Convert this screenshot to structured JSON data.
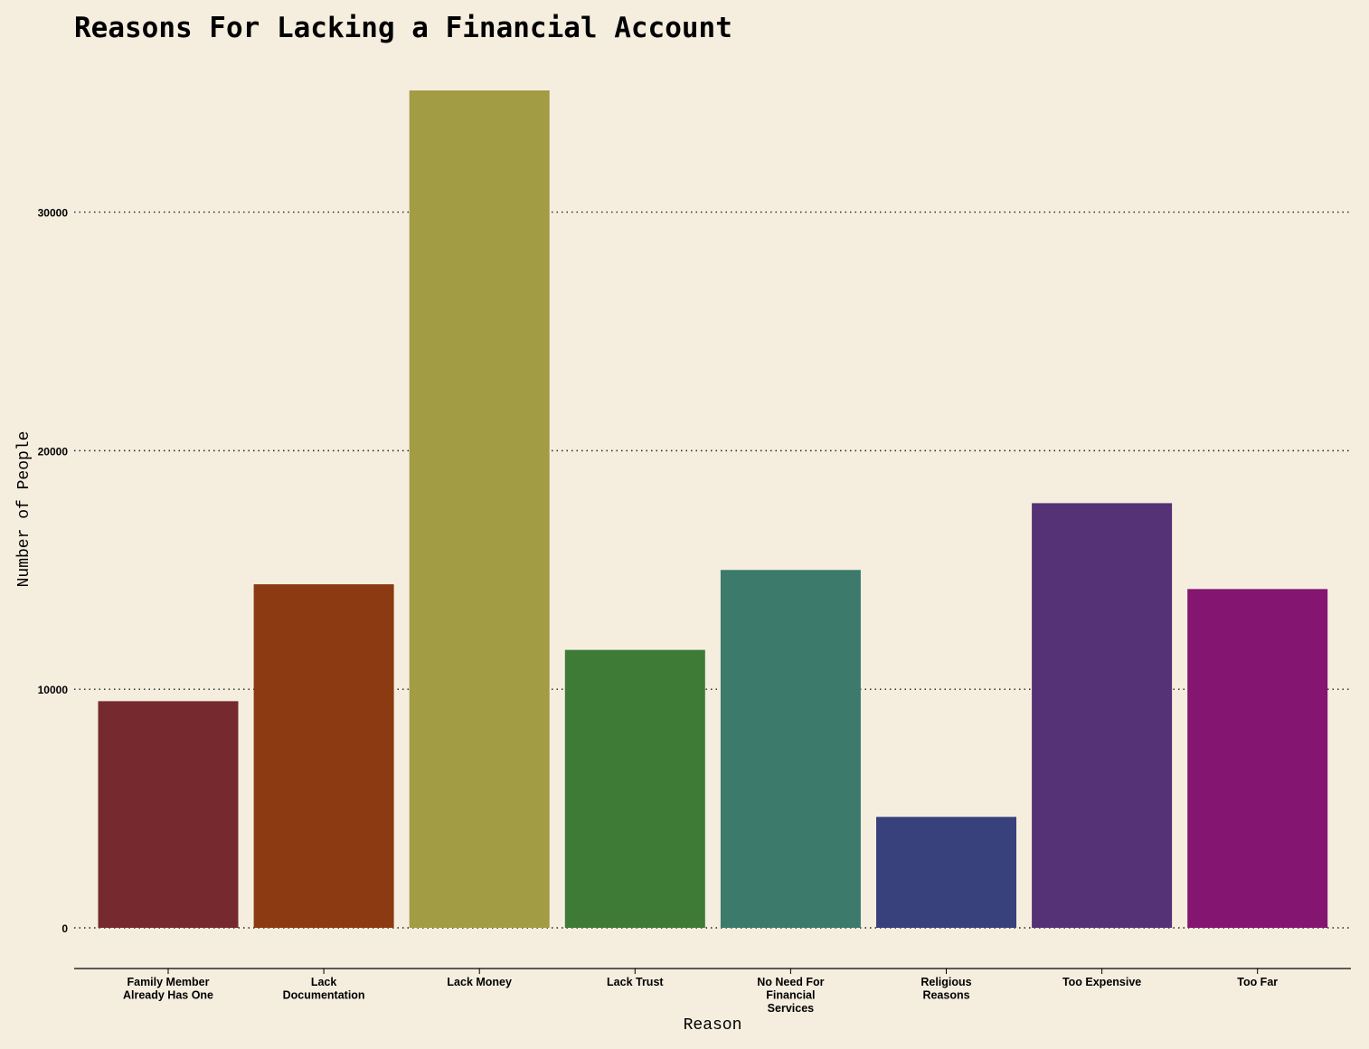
{
  "chart_data": {
    "type": "bar",
    "title": "Reasons For Lacking a Financial Account",
    "xlabel": "Reason",
    "ylabel": "Number of People",
    "ylim": [
      0,
      35200
    ],
    "yticks": [
      0,
      10000,
      20000,
      30000
    ],
    "grid": "horizontal dotted",
    "legend": "none",
    "categories": [
      [
        "Family Member",
        "Already Has One"
      ],
      [
        "Lack",
        "Documentation"
      ],
      [
        "Lack Money"
      ],
      [
        "Lack Trust"
      ],
      [
        "No Need For",
        "Financial",
        "Services"
      ],
      [
        "Religious",
        "Reasons"
      ],
      [
        "Too Expensive"
      ],
      [
        "Too Far"
      ]
    ],
    "values": [
      9500,
      14400,
      35100,
      11650,
      15000,
      4650,
      17800,
      14200
    ],
    "colors": [
      "#76292f",
      "#8b3a12",
      "#a29c44",
      "#3e7b36",
      "#3c7a6b",
      "#38417b",
      "#553176",
      "#841570"
    ],
    "background": "#f5eedf"
  }
}
